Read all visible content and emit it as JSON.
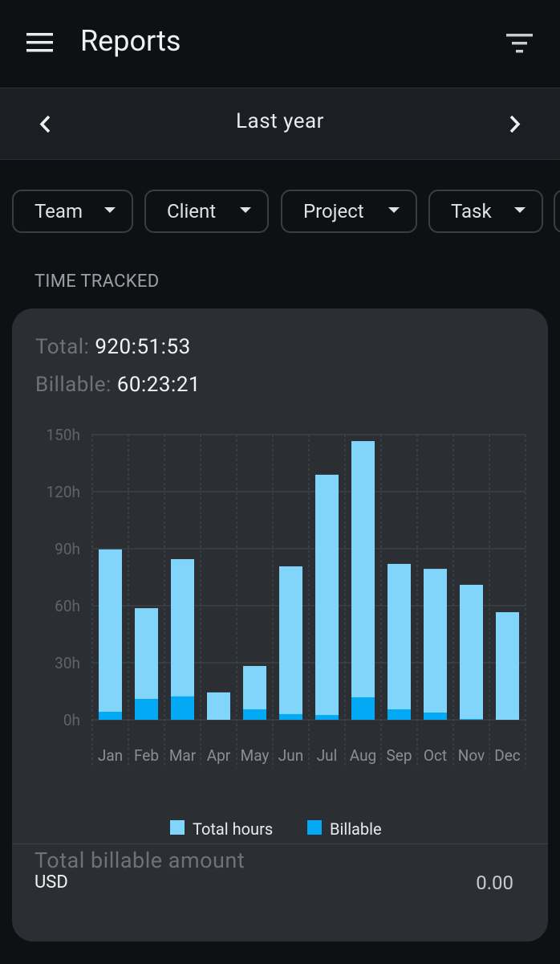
{
  "header": {
    "title": "Reports"
  },
  "period": {
    "label": "Last year"
  },
  "filters": [
    "Team",
    "Client",
    "Project",
    "Task"
  ],
  "section_title": "TIME TRACKED",
  "summary": {
    "total_label": "Total:",
    "total_value": "920:51:53",
    "billable_label": "Billable:",
    "billable_value": "60:23:21"
  },
  "chart_data": {
    "type": "bar",
    "categories": [
      "Jan",
      "Feb",
      "Mar",
      "Apr",
      "May",
      "Jun",
      "Jul",
      "Aug",
      "Sep",
      "Oct",
      "Nov",
      "Dec"
    ],
    "series": [
      {
        "name": "Total hours",
        "color": "#81d4fa",
        "values": [
          89.6,
          58.7,
          84.5,
          14.4,
          28.3,
          80.7,
          128.9,
          146.6,
          82,
          79.4,
          71,
          56.6
        ]
      },
      {
        "name": "Billable",
        "color": "#03a9f4",
        "values": [
          4.2,
          11,
          12.3,
          0,
          5.5,
          3,
          2.5,
          11.8,
          5.5,
          3.8,
          0.4,
          0
        ]
      }
    ],
    "ylim": [
      0,
      150
    ],
    "yticks": [
      {
        "value": 0,
        "label": "0h"
      },
      {
        "value": 30,
        "label": "30h"
      },
      {
        "value": 60,
        "label": "60h"
      },
      {
        "value": 90,
        "label": "90h"
      },
      {
        "value": 120,
        "label": "120h"
      },
      {
        "value": 150,
        "label": "150h"
      }
    ],
    "grid": true
  },
  "footer": {
    "amount_label": "Total billable amount",
    "currency": "USD",
    "amount": "0.00"
  }
}
